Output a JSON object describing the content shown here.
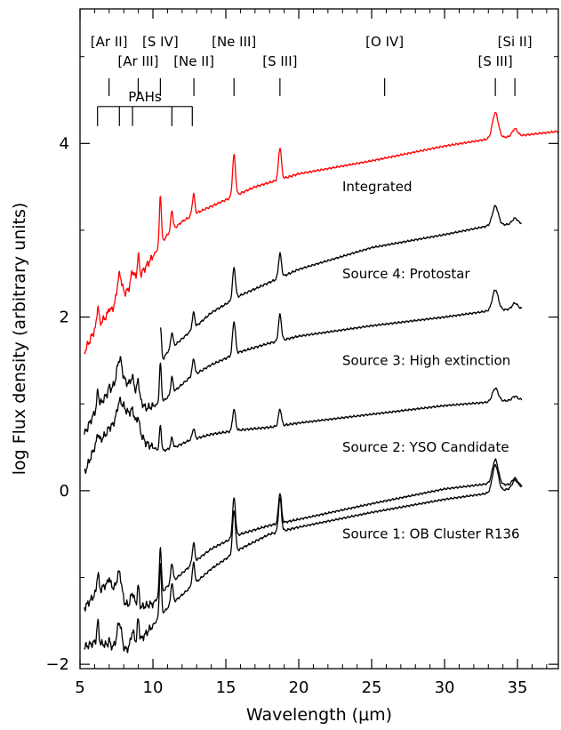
{
  "chart_data": {
    "type": "line",
    "xlabel": "Wavelength (μm)",
    "ylabel": "log Flux density (arbitrary units)",
    "xlim": [
      5,
      37.8
    ],
    "ylim": [
      -2.05,
      5.55
    ],
    "x_ticks": [
      5,
      10,
      15,
      20,
      25,
      30,
      35
    ],
    "y_ticks": [
      -2,
      0,
      2,
      4
    ],
    "emission_lines": [
      {
        "label": "[Ar II]",
        "x": 6.99,
        "row": 0
      },
      {
        "label": "[S IV]",
        "x": 10.51,
        "row": 0
      },
      {
        "label": "[Ne III]",
        "x": 15.56,
        "row": 0
      },
      {
        "label": "[O IV]",
        "x": 25.89,
        "row": 0
      },
      {
        "label": "[Si II]",
        "x": 34.82,
        "row": 0
      },
      {
        "label": "[Ar III]",
        "x": 8.99,
        "row": 1
      },
      {
        "label": "[Ne II]",
        "x": 12.81,
        "row": 1
      },
      {
        "label": "[S III]",
        "x": 18.71,
        "row": 1
      },
      {
        "label": "[S III]",
        "x": 33.48,
        "row": 1
      }
    ],
    "pah": {
      "label": "PAHs",
      "x": [
        6.2,
        7.7,
        8.6,
        11.3,
        12.7
      ]
    },
    "series": [
      {
        "name": "Integrated",
        "color": "#ff0000",
        "x_end": 37.8,
        "label_y": 3.5,
        "base": [
          [
            5.3,
            1.6
          ],
          [
            6,
            1.85
          ],
          [
            7,
            2.05
          ],
          [
            8,
            2.25
          ],
          [
            9,
            2.45
          ],
          [
            10,
            2.7
          ],
          [
            11,
            2.95
          ],
          [
            12,
            3.1
          ],
          [
            13,
            3.2
          ],
          [
            15,
            3.35
          ],
          [
            17,
            3.5
          ],
          [
            20,
            3.65
          ],
          [
            25,
            3.8
          ],
          [
            30,
            3.97
          ],
          [
            33,
            4.05
          ],
          [
            37.8,
            4.14
          ]
        ]
      },
      {
        "name": "Source 4: Protostar",
        "color": "#000000",
        "x_end": 35.3,
        "label_y": 2.5,
        "base": [
          [
            10.5,
            1.45
          ],
          [
            11,
            1.6
          ],
          [
            12,
            1.75
          ],
          [
            13,
            1.9
          ],
          [
            14,
            2.05
          ],
          [
            16,
            2.25
          ],
          [
            18,
            2.4
          ],
          [
            20,
            2.55
          ],
          [
            25,
            2.8
          ],
          [
            30,
            2.95
          ],
          [
            33,
            3.05
          ],
          [
            35.3,
            3.08
          ]
        ]
      },
      {
        "name": "Source 3: High extinction",
        "color": "#000000",
        "x_end": 35.3,
        "label_y": 1.5,
        "base": [
          [
            5.3,
            0.65
          ],
          [
            6,
            0.9
          ],
          [
            7,
            1.15
          ],
          [
            7.8,
            1.3
          ],
          [
            8.5,
            1.2
          ],
          [
            9.5,
            0.95
          ],
          [
            10.5,
            1.0
          ],
          [
            11.5,
            1.15
          ],
          [
            12.5,
            1.3
          ],
          [
            14,
            1.45
          ],
          [
            16,
            1.6
          ],
          [
            18,
            1.7
          ],
          [
            20,
            1.78
          ],
          [
            25,
            1.9
          ],
          [
            30,
            2.0
          ],
          [
            33,
            2.07
          ],
          [
            35.3,
            2.1
          ]
        ]
      },
      {
        "name": "Source 2: YSO Candidate",
        "color": "#000000",
        "x_end": 35.3,
        "label_y": 0.5,
        "base": [
          [
            5.3,
            0.2
          ],
          [
            6,
            0.5
          ],
          [
            7,
            0.7
          ],
          [
            8,
            0.95
          ],
          [
            8.6,
            0.85
          ],
          [
            9.5,
            0.55
          ],
          [
            10.5,
            0.45
          ],
          [
            11.5,
            0.5
          ],
          [
            12.5,
            0.58
          ],
          [
            14,
            0.65
          ],
          [
            16,
            0.7
          ],
          [
            18,
            0.73
          ],
          [
            20,
            0.78
          ],
          [
            25,
            0.88
          ],
          [
            30,
            0.98
          ],
          [
            33,
            1.02
          ],
          [
            35.3,
            1.05
          ]
        ]
      },
      {
        "name": "Source 1: OB Cluster R136",
        "color": "#000000",
        "x_end": 35.3,
        "label_y": -0.5,
        "base": [
          [
            5.3,
            -1.35
          ],
          [
            6,
            -1.2
          ],
          [
            7,
            -1.05
          ],
          [
            8,
            -1.3
          ],
          [
            9,
            -1.35
          ],
          [
            10,
            -1.3
          ],
          [
            11,
            -1.1
          ],
          [
            12,
            -0.95
          ],
          [
            13,
            -0.8
          ],
          [
            14,
            -0.67
          ],
          [
            16,
            -0.5
          ],
          [
            18,
            -0.4
          ],
          [
            20,
            -0.33
          ],
          [
            25,
            -0.15
          ],
          [
            30,
            0.02
          ],
          [
            33,
            0.08
          ],
          [
            35.3,
            0.06
          ]
        ]
      },
      {
        "name": "",
        "color": "#000000",
        "x_end": 35.3,
        "label_y": null,
        "base": [
          [
            5.3,
            -1.8
          ],
          [
            6,
            -1.75
          ],
          [
            7,
            -1.78
          ],
          [
            8,
            -1.85
          ],
          [
            9,
            -1.75
          ],
          [
            10,
            -1.55
          ],
          [
            11,
            -1.35
          ],
          [
            12,
            -1.2
          ],
          [
            13,
            -1.05
          ],
          [
            14,
            -0.9
          ],
          [
            16,
            -0.67
          ],
          [
            18,
            -0.5
          ],
          [
            20,
            -0.42
          ],
          [
            25,
            -0.25
          ],
          [
            30,
            -0.1
          ],
          [
            33,
            -0.03
          ],
          [
            35.3,
            0.05
          ]
        ]
      }
    ]
  }
}
